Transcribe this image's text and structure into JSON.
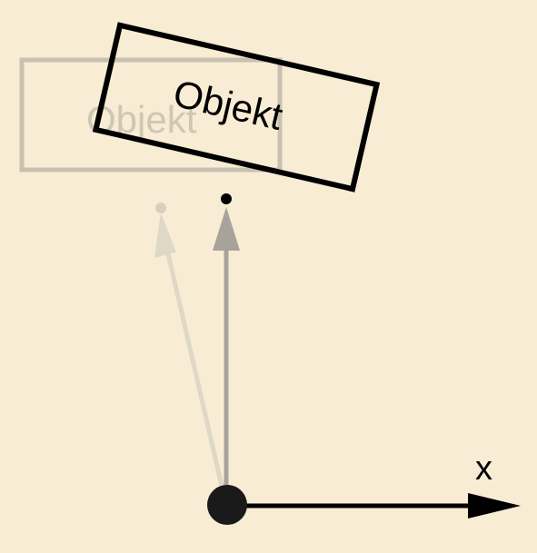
{
  "diagram": {
    "objects": {
      "ghost": {
        "label": "Objekt"
      },
      "current": {
        "label": "Objekt"
      }
    },
    "axis": {
      "label": "x"
    }
  },
  "colors": {
    "background": "#f8ecd4",
    "ghost_stroke": "#c8c0b0",
    "ghost_text": "#cfc6b5",
    "current_stroke": "#000000",
    "vector_gray": "#a8a39a",
    "ghost_vector": "#e0d8c6",
    "axis": "#000000",
    "origin": "#1a1a1a"
  }
}
